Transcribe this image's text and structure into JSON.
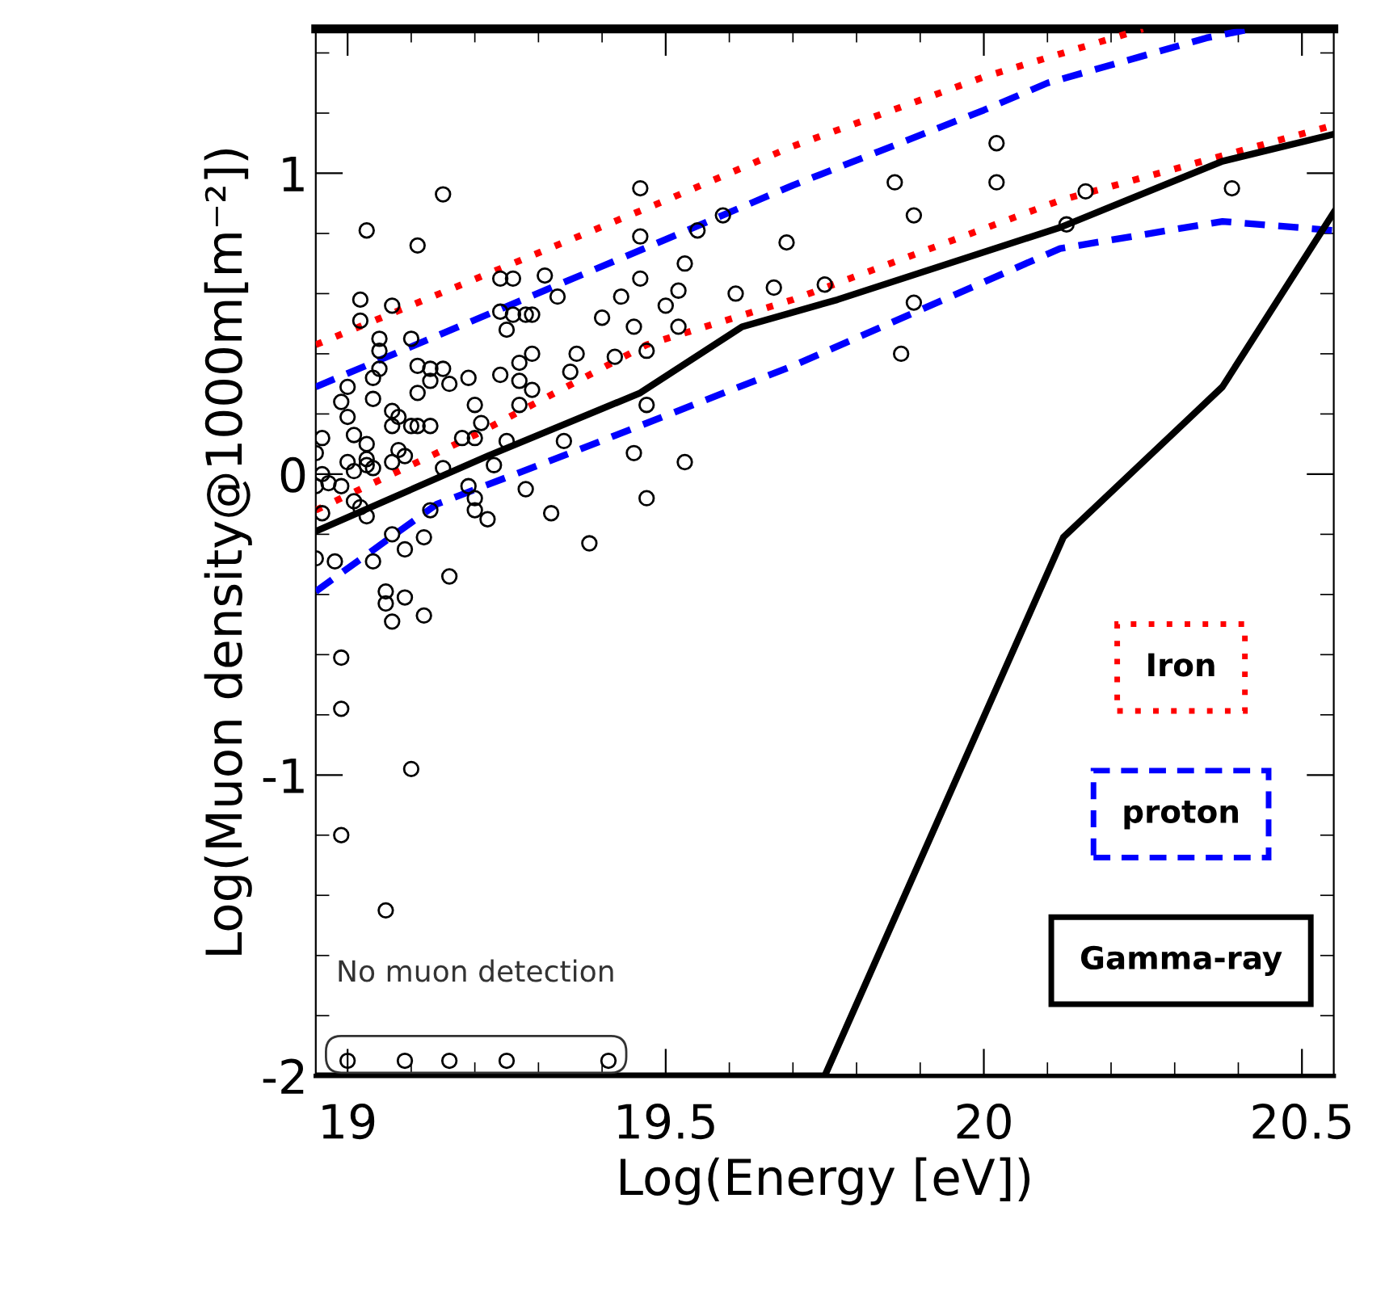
{
  "chart_data": {
    "type": "line",
    "xlabel": "Log(Energy [eV])",
    "ylabel": "Log(Muon density@1000m[m⁻²])",
    "xlim": [
      18.95,
      20.55
    ],
    "ylim": [
      -2,
      1.48
    ],
    "xticks": [
      19,
      19.5,
      20,
      20.5
    ],
    "yticks": [
      -2,
      -1,
      0,
      1
    ],
    "grid": false,
    "legend": "right",
    "annotations": [
      "No muon detection"
    ],
    "series": [
      {
        "name": "Iron",
        "color": "#ff0000",
        "line_style": "dotted",
        "x": [
          18.95,
          19.5,
          19.7,
          20.0,
          20.25
        ],
        "values": [
          0.43,
          0.91,
          1.09,
          1.32,
          1.48
        ]
      },
      {
        "color": "#ff0000",
        "line_style": "dotted",
        "x": [
          18.95,
          19.2,
          19.47,
          19.7,
          20.12,
          20.55
        ],
        "values": [
          -0.12,
          0.13,
          0.43,
          0.58,
          0.91,
          1.16
        ]
      },
      {
        "name": "proton",
        "color": "#0000ff",
        "line_style": "dashed",
        "x": [
          18.95,
          19.5,
          19.7,
          20.0,
          20.1,
          20.35,
          20.42
        ],
        "values": [
          0.29,
          0.78,
          0.96,
          1.21,
          1.3,
          1.45,
          1.48
        ]
      },
      {
        "color": "#0000ff",
        "line_style": "dashed",
        "x": [
          18.95,
          19.14,
          19.35,
          19.7,
          20.12,
          20.375,
          20.55
        ],
        "values": [
          -0.39,
          -0.1,
          0.07,
          0.36,
          0.75,
          0.84,
          0.81
        ]
      },
      {
        "color": "#000000",
        "line_style": "solid",
        "x": [
          18.95,
          19.22,
          19.46,
          19.62,
          19.77,
          20.12,
          20.375,
          20.55
        ],
        "values": [
          -0.19,
          0.06,
          0.27,
          0.49,
          0.58,
          0.82,
          1.04,
          1.13
        ]
      },
      {
        "name": "Gamma-ray",
        "color": "#000000",
        "line_style": "solid",
        "x": [
          18.95,
          19.75,
          20.125,
          20.375,
          20.55
        ],
        "values": [
          -2,
          -2,
          -0.21,
          0.29,
          0.87
        ]
      },
      {
        "type": "scatter",
        "marker": "circle",
        "color": "#000000",
        "x": [
          19.15,
          19.03,
          19.11,
          19.46,
          19.46,
          19.59,
          19.55,
          19.69,
          19.24,
          19.26,
          19.31,
          19.33,
          19.46,
          19.53,
          19.43,
          19.52,
          19.5,
          19.61,
          19.67,
          19.75,
          19.02,
          19.07,
          19.02,
          19.24,
          19.26,
          19.28,
          19.29,
          19.4,
          19.25,
          19.45,
          19.52,
          19.05,
          19.1,
          19.05,
          19.29,
          19.36,
          19.42,
          19.47,
          19.27,
          19.11,
          19.13,
          19.15,
          19.05,
          19.04,
          19.13,
          19.16,
          19.19,
          19.24,
          19.27,
          19.35,
          19.0,
          19.11,
          19.29,
          19.04,
          18.99,
          19.0,
          19.07,
          19.08,
          19.07,
          19.1,
          19.11,
          19.13,
          19.2,
          19.27,
          19.47,
          18.96,
          19.01,
          19.03,
          19.18,
          19.2,
          19.21,
          19.25,
          19.08,
          19.07,
          19.09,
          19.03,
          19.03,
          19.0,
          18.95,
          18.96,
          18.97,
          18.99,
          19.01,
          19.04,
          19.15,
          19.23,
          19.34,
          19.45,
          19.53,
          18.95,
          18.96,
          19.01,
          19.02,
          19.03,
          19.19,
          19.2,
          19.2,
          19.28,
          19.22,
          19.32,
          19.47,
          19.38,
          19.13,
          19.07,
          19.09,
          19.12,
          19.04,
          18.98,
          18.95,
          19.16,
          19.06,
          19.09,
          19.06,
          19.07,
          19.12,
          18.99,
          18.99,
          19.1,
          18.99,
          19.06,
          19.0,
          19.09,
          19.16,
          19.25,
          19.41,
          20.02,
          19.86,
          20.02,
          19.89,
          20.16,
          20.39,
          20.13,
          19.89,
          19.87
        ],
        "values": [
          0.93,
          0.81,
          0.76,
          0.95,
          0.79,
          0.86,
          0.81,
          0.77,
          0.65,
          0.65,
          0.66,
          0.59,
          0.65,
          0.7,
          0.59,
          0.61,
          0.56,
          0.6,
          0.62,
          0.63,
          0.58,
          0.56,
          0.51,
          0.54,
          0.53,
          0.53,
          0.53,
          0.52,
          0.48,
          0.49,
          0.49,
          0.45,
          0.45,
          0.41,
          0.4,
          0.4,
          0.39,
          0.41,
          0.37,
          0.36,
          0.35,
          0.35,
          0.35,
          0.32,
          0.31,
          0.3,
          0.32,
          0.33,
          0.31,
          0.34,
          0.29,
          0.27,
          0.28,
          0.25,
          0.24,
          0.19,
          0.21,
          0.19,
          0.16,
          0.16,
          0.16,
          0.16,
          0.23,
          0.23,
          0.23,
          0.12,
          0.13,
          0.1,
          0.12,
          0.12,
          0.17,
          0.11,
          0.08,
          0.04,
          0.06,
          0.05,
          0.03,
          0.04,
          0.07,
          0.0,
          -0.03,
          -0.04,
          0.01,
          0.02,
          0.02,
          0.03,
          0.11,
          0.07,
          0.04,
          -0.04,
          -0.13,
          -0.09,
          -0.11,
          -0.14,
          -0.04,
          -0.08,
          -0.12,
          -0.05,
          -0.15,
          -0.13,
          -0.08,
          -0.23,
          -0.12,
          -0.2,
          -0.25,
          -0.21,
          -0.29,
          -0.29,
          -0.28,
          -0.34,
          -0.39,
          -0.41,
          -0.43,
          -0.49,
          -0.47,
          -0.61,
          -0.78,
          -0.98,
          -1.2,
          -1.45,
          -1.95,
          -1.95,
          -1.95,
          -1.95,
          -1.95,
          1.1,
          0.97,
          0.97,
          0.86,
          0.94,
          0.95,
          0.83,
          0.57,
          0.4
        ]
      }
    ]
  }
}
